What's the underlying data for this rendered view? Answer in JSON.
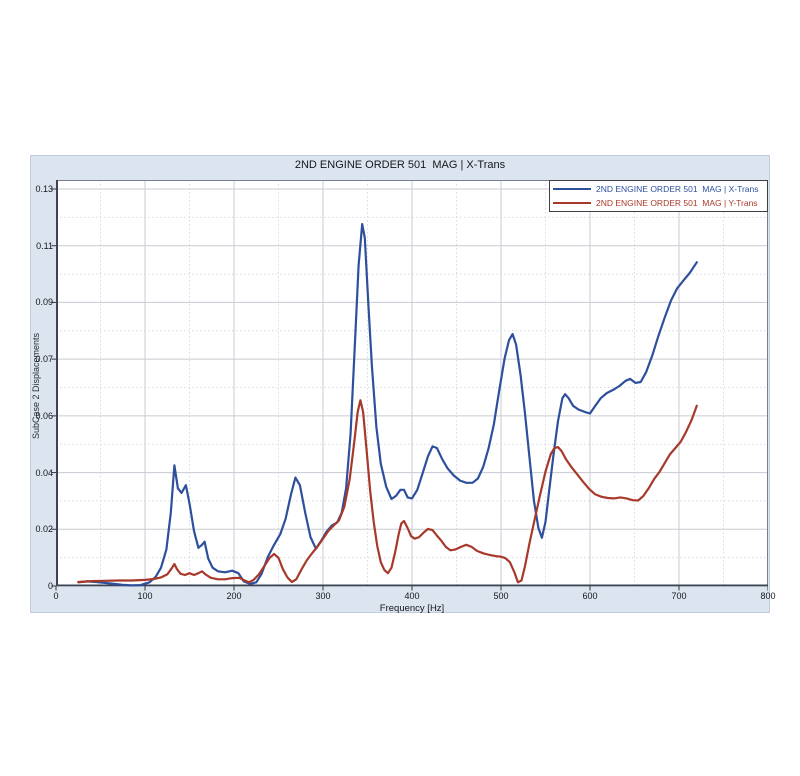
{
  "panel": {
    "background_color": "#dce4f0",
    "plot_background_color": "#ffffff"
  },
  "chart_data": {
    "type": "line",
    "title": "2ND ENGINE ORDER 501  MAG | X-Trans",
    "xlabel": "Frequency [Hz]",
    "ylabel": "SubCase 2 Displacements",
    "xlim": [
      0,
      800
    ],
    "ylim": [
      0,
      0.13
    ],
    "grid": "major solid gray, minor dotted",
    "legend_position": "top-right",
    "x_tick_labels": [
      "0",
      "100",
      "200",
      "300",
      "400",
      "500",
      "600",
      "700",
      "800"
    ],
    "y_tick_labels_bottom_to_top": [
      "0",
      "0.02",
      "0.04",
      "0.06",
      "0.07",
      "0.09",
      "0.11",
      "0.13"
    ],
    "series": [
      {
        "name": "2ND ENGINE ORDER 501  MAG | X-Trans",
        "color": "#2d4f9c",
        "points": [
          [
            25,
            0.0012
          ],
          [
            35,
            0.0015
          ],
          [
            45,
            0.0013
          ],
          [
            55,
            0.001
          ],
          [
            65,
            0.0007
          ],
          [
            75,
            0.0004
          ],
          [
            85,
            0.0002
          ],
          [
            95,
            0.0003
          ],
          [
            105,
            0.0012
          ],
          [
            112,
            0.003
          ],
          [
            118,
            0.006
          ],
          [
            124,
            0.012
          ],
          [
            129,
            0.024
          ],
          [
            133,
            0.0395
          ],
          [
            137,
            0.032
          ],
          [
            141,
            0.0305
          ],
          [
            146,
            0.033
          ],
          [
            150,
            0.027
          ],
          [
            155,
            0.018
          ],
          [
            160,
            0.0125
          ],
          [
            164,
            0.0135
          ],
          [
            167,
            0.0145
          ],
          [
            171,
            0.009
          ],
          [
            176,
            0.006
          ],
          [
            182,
            0.0048
          ],
          [
            190,
            0.0045
          ],
          [
            198,
            0.005
          ],
          [
            205,
            0.0042
          ],
          [
            211,
            0.0015
          ],
          [
            218,
            0.0007
          ],
          [
            225,
            0.0012
          ],
          [
            231,
            0.004
          ],
          [
            238,
            0.0095
          ],
          [
            245,
            0.0135
          ],
          [
            252,
            0.017
          ],
          [
            258,
            0.022
          ],
          [
            264,
            0.03
          ],
          [
            269,
            0.0355
          ],
          [
            274,
            0.033
          ],
          [
            280,
            0.024
          ],
          [
            286,
            0.016
          ],
          [
            292,
            0.0122
          ],
          [
            298,
            0.0148
          ],
          [
            304,
            0.0178
          ],
          [
            310,
            0.0198
          ],
          [
            316,
            0.0208
          ],
          [
            321,
            0.024
          ],
          [
            326,
            0.032
          ],
          [
            331,
            0.05
          ],
          [
            336,
            0.08
          ],
          [
            340,
            0.105
          ],
          [
            344,
            0.1185
          ],
          [
            347,
            0.114
          ],
          [
            351,
            0.092
          ],
          [
            355,
            0.072
          ],
          [
            360,
            0.052
          ],
          [
            365,
            0.04
          ],
          [
            371,
            0.0325
          ],
          [
            377,
            0.0285
          ],
          [
            382,
            0.0295
          ],
          [
            387,
            0.0315
          ],
          [
            391,
            0.0315
          ],
          [
            395,
            0.029
          ],
          [
            400,
            0.0287
          ],
          [
            406,
            0.0315
          ],
          [
            412,
            0.037
          ],
          [
            418,
            0.0425
          ],
          [
            423,
            0.0457
          ],
          [
            428,
            0.0452
          ],
          [
            434,
            0.0415
          ],
          [
            440,
            0.0385
          ],
          [
            447,
            0.0362
          ],
          [
            454,
            0.0345
          ],
          [
            461,
            0.0338
          ],
          [
            468,
            0.0338
          ],
          [
            474,
            0.0352
          ],
          [
            480,
            0.039
          ],
          [
            486,
            0.045
          ],
          [
            492,
            0.053
          ],
          [
            498,
            0.064
          ],
          [
            504,
            0.0745
          ],
          [
            509,
            0.0805
          ],
          [
            513,
            0.0825
          ],
          [
            517,
            0.079
          ],
          [
            522,
            0.069
          ],
          [
            527,
            0.0565
          ],
          [
            532,
            0.042
          ],
          [
            537,
            0.028
          ],
          [
            542,
            0.019
          ],
          [
            546,
            0.0158
          ],
          [
            550,
            0.021
          ],
          [
            554,
            0.031
          ],
          [
            559,
            0.043
          ],
          [
            564,
            0.054
          ],
          [
            569,
            0.0615
          ],
          [
            572,
            0.0628
          ],
          [
            576,
            0.0615
          ],
          [
            581,
            0.059
          ],
          [
            587,
            0.0578
          ],
          [
            594,
            0.057
          ],
          [
            600,
            0.0565
          ],
          [
            606,
            0.059
          ],
          [
            612,
            0.0615
          ],
          [
            619,
            0.0632
          ],
          [
            626,
            0.0642
          ],
          [
            633,
            0.0655
          ],
          [
            640,
            0.0672
          ],
          [
            645,
            0.0678
          ],
          [
            651,
            0.0665
          ],
          [
            657,
            0.0668
          ],
          [
            663,
            0.07
          ],
          [
            670,
            0.0755
          ],
          [
            677,
            0.082
          ],
          [
            684,
            0.088
          ],
          [
            691,
            0.0935
          ],
          [
            698,
            0.0975
          ],
          [
            705,
            0.1
          ],
          [
            712,
            0.1025
          ],
          [
            720,
            0.106
          ]
        ]
      },
      {
        "name": "2ND ENGINE ORDER 501  MAG | Y-Trans",
        "color": "#a8392a",
        "points": [
          [
            25,
            0.0013
          ],
          [
            40,
            0.0016
          ],
          [
            55,
            0.0017
          ],
          [
            70,
            0.0018
          ],
          [
            85,
            0.0018
          ],
          [
            100,
            0.002
          ],
          [
            110,
            0.0023
          ],
          [
            118,
            0.0028
          ],
          [
            125,
            0.0038
          ],
          [
            130,
            0.0058
          ],
          [
            133,
            0.0072
          ],
          [
            136,
            0.0055
          ],
          [
            140,
            0.004
          ],
          [
            145,
            0.0036
          ],
          [
            150,
            0.0042
          ],
          [
            155,
            0.0036
          ],
          [
            160,
            0.0042
          ],
          [
            164,
            0.0048
          ],
          [
            168,
            0.0038
          ],
          [
            174,
            0.0027
          ],
          [
            182,
            0.0022
          ],
          [
            190,
            0.0022
          ],
          [
            198,
            0.0026
          ],
          [
            206,
            0.0027
          ],
          [
            212,
            0.0018
          ],
          [
            217,
            0.0012
          ],
          [
            222,
            0.002
          ],
          [
            228,
            0.0038
          ],
          [
            234,
            0.0065
          ],
          [
            240,
            0.0092
          ],
          [
            245,
            0.0105
          ],
          [
            250,
            0.0092
          ],
          [
            255,
            0.0055
          ],
          [
            260,
            0.0028
          ],
          [
            265,
            0.0013
          ],
          [
            270,
            0.0022
          ],
          [
            276,
            0.0055
          ],
          [
            282,
            0.0085
          ],
          [
            288,
            0.0108
          ],
          [
            294,
            0.013
          ],
          [
            300,
            0.0155
          ],
          [
            306,
            0.018
          ],
          [
            312,
            0.0198
          ],
          [
            318,
            0.0215
          ],
          [
            324,
            0.026
          ],
          [
            330,
            0.035
          ],
          [
            335,
            0.047
          ],
          [
            339,
            0.057
          ],
          [
            342,
            0.0608
          ],
          [
            345,
            0.057
          ],
          [
            349,
            0.0445
          ],
          [
            353,
            0.031
          ],
          [
            357,
            0.021
          ],
          [
            361,
            0.013
          ],
          [
            365,
            0.0078
          ],
          [
            369,
            0.0052
          ],
          [
            373,
            0.0042
          ],
          [
            377,
            0.006
          ],
          [
            381,
            0.011
          ],
          [
            385,
            0.017
          ],
          [
            388,
            0.0205
          ],
          [
            391,
            0.0213
          ],
          [
            395,
            0.019
          ],
          [
            399,
            0.0163
          ],
          [
            403,
            0.0155
          ],
          [
            408,
            0.016
          ],
          [
            413,
            0.0175
          ],
          [
            418,
            0.0187
          ],
          [
            423,
            0.0183
          ],
          [
            428,
            0.0165
          ],
          [
            433,
            0.0148
          ],
          [
            438,
            0.0128
          ],
          [
            443,
            0.0117
          ],
          [
            449,
            0.012
          ],
          [
            455,
            0.0128
          ],
          [
            461,
            0.0135
          ],
          [
            467,
            0.0128
          ],
          [
            473,
            0.0115
          ],
          [
            480,
            0.0107
          ],
          [
            487,
            0.0102
          ],
          [
            494,
            0.0098
          ],
          [
            500,
            0.0096
          ],
          [
            505,
            0.0091
          ],
          [
            510,
            0.0078
          ],
          [
            515,
            0.0045
          ],
          [
            519,
            0.0012
          ],
          [
            523,
            0.0018
          ],
          [
            527,
            0.0065
          ],
          [
            532,
            0.014
          ],
          [
            538,
            0.022
          ],
          [
            544,
            0.03
          ],
          [
            550,
            0.0375
          ],
          [
            556,
            0.0432
          ],
          [
            560,
            0.0452
          ],
          [
            564,
            0.0455
          ],
          [
            568,
            0.0442
          ],
          [
            573,
            0.0415
          ],
          [
            579,
            0.039
          ],
          [
            585,
            0.0368
          ],
          [
            592,
            0.0342
          ],
          [
            599,
            0.0318
          ],
          [
            606,
            0.03
          ],
          [
            613,
            0.0292
          ],
          [
            620,
            0.0288
          ],
          [
            627,
            0.0287
          ],
          [
            634,
            0.029
          ],
          [
            641,
            0.0287
          ],
          [
            648,
            0.0281
          ],
          [
            654,
            0.028
          ],
          [
            660,
            0.0295
          ],
          [
            666,
            0.032
          ],
          [
            672,
            0.035
          ],
          [
            678,
            0.0373
          ],
          [
            684,
            0.0403
          ],
          [
            690,
            0.0432
          ],
          [
            696,
            0.0452
          ],
          [
            702,
            0.0473
          ],
          [
            708,
            0.0505
          ],
          [
            714,
            0.0543
          ],
          [
            720,
            0.059
          ]
        ]
      }
    ]
  }
}
